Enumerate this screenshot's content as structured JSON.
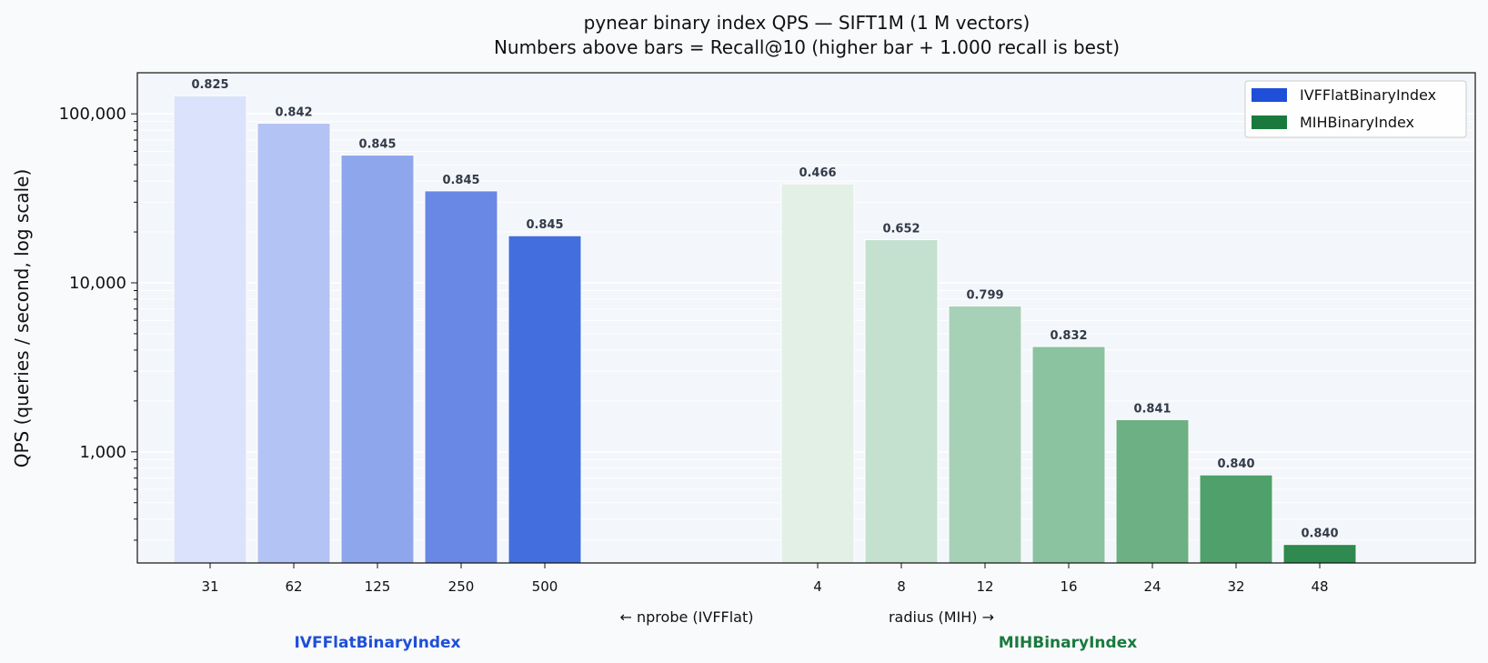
{
  "chart_data": {
    "type": "bar",
    "title": "pynear binary index QPS — SIFT1M (1 M vectors)",
    "subtitle": "Numbers above bars = Recall@10   (higher bar + 1.000 recall is best)",
    "ylabel": "QPS  (queries / second, log scale)",
    "y_scale": "log",
    "ylim": [
      220,
      175000
    ],
    "yticks": [
      1000,
      10000,
      100000
    ],
    "ytick_labels": [
      "1,000",
      "10,000",
      "100,000"
    ],
    "xlabel_left": "← nprobe (IVFFlat)",
    "xlabel_right": "radius (MIH) →",
    "legend_position": "top-right",
    "grid": "horizontal",
    "groups": [
      {
        "name": "IVFFlatBinaryIndex",
        "param": "nprobe",
        "color": "#1f4fd8",
        "shades": [
          "#dbe2fb",
          "#b3c3f3",
          "#8ea7ec",
          "#6987e4",
          "#436edd"
        ],
        "categories": [
          "31",
          "62",
          "125",
          "250",
          "500"
        ],
        "values": [
          128000,
          88000,
          57000,
          35000,
          19000
        ],
        "recall": [
          "0.825",
          "0.842",
          "0.845",
          "0.845",
          "0.845"
        ]
      },
      {
        "name": "MIHBinaryIndex",
        "param": "radius",
        "color": "#1a7a3e",
        "shades": [
          "#e2f0e6",
          "#c4e0cf",
          "#a7d1b6",
          "#8bc29f",
          "#6cb084",
          "#4fa06b",
          "#2e8a4e"
        ],
        "categories": [
          "4",
          "8",
          "12",
          "16",
          "24",
          "32",
          "48"
        ],
        "values": [
          38500,
          18000,
          7300,
          4200,
          1550,
          730,
          283
        ],
        "recall": [
          "0.466",
          "0.652",
          "0.799",
          "0.832",
          "0.841",
          "0.840",
          "0.840"
        ]
      }
    ]
  }
}
